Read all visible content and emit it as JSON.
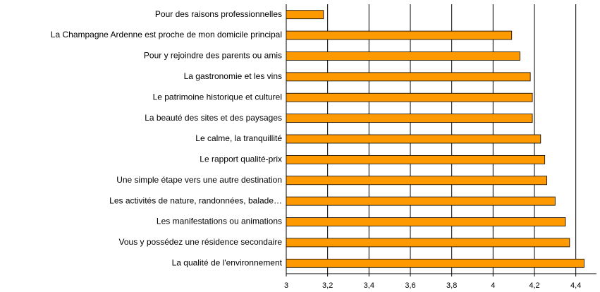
{
  "chart_data": {
    "type": "barh",
    "categories": [
      "Pour des raisons professionnelles",
      "La Champagne Ardenne est proche de mon domicile principal",
      "Pour y rejoindre des parents ou amis",
      "La gastronomie et les vins",
      "Le patrimoine historique et culturel",
      "La beauté des sites et des paysages",
      "Le calme, la tranquillité",
      "Le rapport qualité-prix",
      "Une simple étape vers une autre destination",
      "Les activités de nature, randonnées, balade…",
      "Les manifestations ou animations",
      "Vous y possédez une résidence secondaire",
      "La qualité de l'environnement"
    ],
    "values": [
      3.18,
      4.09,
      4.13,
      4.18,
      4.19,
      4.19,
      4.23,
      4.25,
      4.26,
      4.3,
      4.35,
      4.37,
      4.44
    ],
    "color": "#ff9900",
    "xlim": [
      3,
      4.5
    ],
    "xticks": [
      3,
      {
        "value": 3.2,
        "label": "3,2"
      },
      {
        "value": 3.4,
        "label": "3,4"
      },
      {
        "value": 3.6,
        "label": "3,6"
      },
      {
        "value": 3.8,
        "label": "3,8"
      },
      4,
      {
        "value": 4.2,
        "label": "4,2"
      },
      {
        "value": 4.4,
        "label": "4,4"
      }
    ],
    "grid": true
  }
}
